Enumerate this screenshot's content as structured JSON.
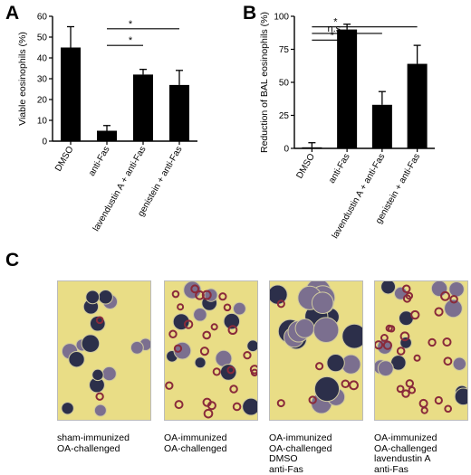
{
  "panels": {
    "a": "A",
    "b": "B",
    "c": "C"
  },
  "chart_data": [
    {
      "type": "bar",
      "title": "",
      "ylabel": "Viable eosinophils (%)",
      "xlabel": "",
      "ylim": [
        0,
        60
      ],
      "yticks": [
        0,
        10,
        20,
        30,
        40,
        50,
        60
      ],
      "categories": [
        "DMSO",
        "anti-Fas",
        "lavendustin A + anti-Fas",
        "genistein + anti-Fas"
      ],
      "values": [
        45,
        5,
        32,
        27
      ],
      "errors": [
        10,
        2.5,
        2.5,
        7
      ],
      "color": "#000000",
      "significance": [
        {
          "from": 1,
          "to": 2,
          "y": 46,
          "label": "*"
        },
        {
          "from": 1,
          "to": 3,
          "y": 54,
          "label": "*"
        }
      ]
    },
    {
      "type": "bar",
      "title": "",
      "ylabel": "Reduction of BAL eosinophils (%)",
      "xlabel": "",
      "ylim": [
        0,
        100
      ],
      "yticks": [
        0,
        25,
        50,
        75,
        100
      ],
      "categories": [
        "DMSO",
        "anti-Fas",
        "lavendustin A + anti-Fas",
        "genistein + anti-Fas"
      ],
      "values": [
        0.8,
        90,
        33,
        64
      ],
      "errors": [
        3.5,
        4,
        10,
        14
      ],
      "color": "#000000",
      "significance": [
        {
          "from": 0,
          "to": 1,
          "y": 82,
          "label": "* *"
        },
        {
          "from": 0,
          "to": 2,
          "y": 87,
          "label": "n.s."
        },
        {
          "from": 0,
          "to": 3,
          "y": 92,
          "label": "*"
        }
      ]
    }
  ],
  "micrographs": [
    {
      "caption": "sham-immunized\nOA-challenged",
      "cells": "sparse"
    },
    {
      "caption": "OA-immunized\nOA-challenged",
      "cells": "mixed"
    },
    {
      "caption": "OA-immunized\nOA-challenged\nDMSO\nanti-Fas",
      "cells": "dense"
    },
    {
      "caption": "OA-immunized\nOA-challenged\nlavendustin A\nanti-Fas",
      "cells": "mixed"
    }
  ]
}
